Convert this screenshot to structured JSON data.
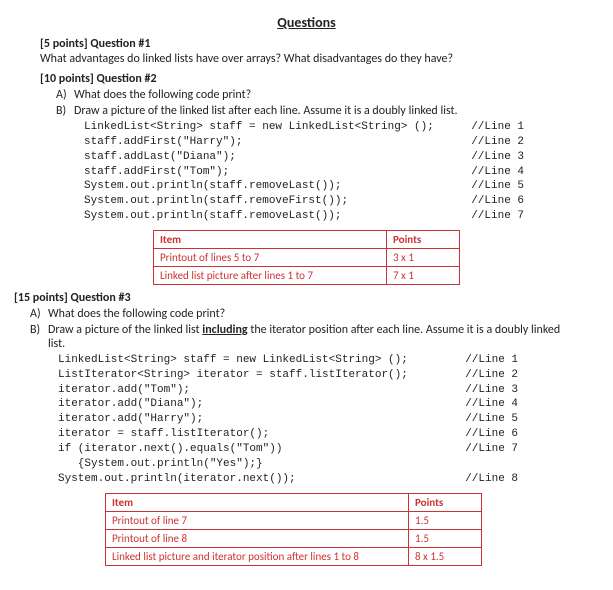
{
  "title": "Questions",
  "q1": {
    "header": "[5 points] Question #1",
    "text": "What advantages do linked lists have over arrays? What disadvantages do they have?"
  },
  "q2": {
    "header": "[10 points] Question #2",
    "partA": "What does the following code print?",
    "partB": "Draw a picture of the linked list after each line. Assume it is a doubly linked list.",
    "code": [
      {
        "c": "LinkedList<String> staff = new LinkedList<String> ();",
        "cm": "//Line 1"
      },
      {
        "c": "staff.addFirst(\"Harry\");",
        "cm": "//Line 2"
      },
      {
        "c": "staff.addLast(\"Diana\");",
        "cm": "//Line 3"
      },
      {
        "c": "staff.addFirst(\"Tom\");",
        "cm": "//Line 4"
      },
      {
        "c": "System.out.println(staff.removeLast());",
        "cm": "//Line 5"
      },
      {
        "c": "System.out.println(staff.removeFirst());",
        "cm": "//Line 6"
      },
      {
        "c": "System.out.println(staff.removeLast());",
        "cm": "//Line 7"
      }
    ],
    "rubric_h1": "Item",
    "rubric_h2": "Points",
    "rubric_r1c1": "Printout of lines 5 to 7",
    "rubric_r1c2": "3 x 1",
    "rubric_r2c1": "Linked list picture after lines 1 to 7",
    "rubric_r2c2": "7 x 1"
  },
  "q3": {
    "header": "[15 points] Question #3",
    "partA": "What does the following code print?",
    "partB_pre": "Draw a picture of the linked list ",
    "partB_incl": "including",
    "partB_post": " the iterator position after each line. Assume it is a doubly linked list.",
    "code": [
      {
        "c": "LinkedList<String> staff = new LinkedList<String> ();",
        "cm": "//Line 1"
      },
      {
        "c": "ListIterator<String> iterator = staff.listIterator();",
        "cm": "//Line 2"
      },
      {
        "c": "iterator.add(\"Tom\");",
        "cm": "//Line 3"
      },
      {
        "c": "iterator.add(\"Diana\");",
        "cm": "//Line 4"
      },
      {
        "c": "iterator.add(\"Harry\");",
        "cm": "//Line 5"
      },
      {
        "c": "iterator = staff.listIterator();",
        "cm": "//Line 6"
      },
      {
        "c": "if (iterator.next().equals(\"Tom\"))",
        "cm": "//Line 7"
      },
      {
        "c": "   {System.out.println(\"Yes\");}",
        "cm": ""
      },
      {
        "c": "System.out.println(iterator.next());",
        "cm": "//Line 8"
      }
    ],
    "rubric_h1": "Item",
    "rubric_h2": "Points",
    "rubric_r1c1": "Printout of line 7",
    "rubric_r1c2": "1.5",
    "rubric_r2c1": "Printout of line 8",
    "rubric_r2c2": "1.5",
    "rubric_r3c1": "Linked list picture and iterator position after lines 1 to 8",
    "rubric_r3c2": "8 x 1.5"
  }
}
